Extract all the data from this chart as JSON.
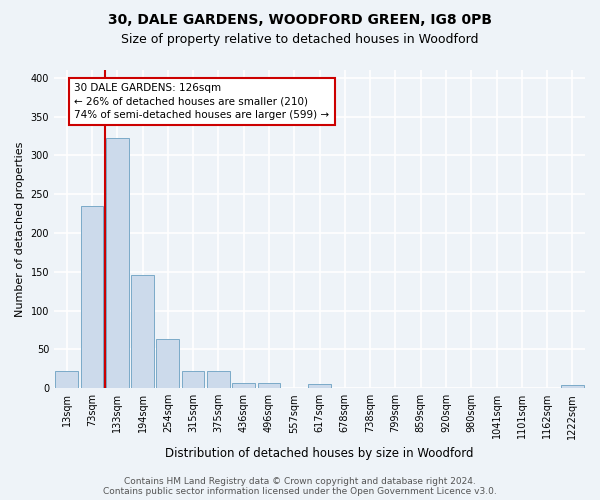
{
  "title1": "30, DALE GARDENS, WOODFORD GREEN, IG8 0PB",
  "title2": "Size of property relative to detached houses in Woodford",
  "xlabel": "Distribution of detached houses by size in Woodford",
  "ylabel": "Number of detached properties",
  "bar_labels": [
    "13sqm",
    "73sqm",
    "133sqm",
    "194sqm",
    "254sqm",
    "315sqm",
    "375sqm",
    "436sqm",
    "496sqm",
    "557sqm",
    "617sqm",
    "678sqm",
    "738sqm",
    "799sqm",
    "859sqm",
    "920sqm",
    "980sqm",
    "1041sqm",
    "1101sqm",
    "1162sqm",
    "1222sqm"
  ],
  "bar_values": [
    22,
    235,
    323,
    146,
    63,
    22,
    22,
    7,
    7,
    0,
    5,
    0,
    0,
    0,
    0,
    0,
    0,
    0,
    0,
    0,
    4
  ],
  "bar_color": "#ccdaeb",
  "bar_edge_color": "#7aaac8",
  "background_color": "#eef3f8",
  "grid_color": "#ffffff",
  "vline_color": "#cc0000",
  "vline_x_index": 2,
  "annotation_text": "30 DALE GARDENS: 126sqm\n← 26% of detached houses are smaller (210)\n74% of semi-detached houses are larger (599) →",
  "annotation_box_color": "#ffffff",
  "annotation_box_edge": "#cc0000",
  "footnote1": "Contains HM Land Registry data © Crown copyright and database right 2024.",
  "footnote2": "Contains public sector information licensed under the Open Government Licence v3.0.",
  "ylim": [
    0,
    410
  ],
  "yticks": [
    0,
    50,
    100,
    150,
    200,
    250,
    300,
    350,
    400
  ],
  "title1_fontsize": 10,
  "title2_fontsize": 9,
  "xlabel_fontsize": 8.5,
  "ylabel_fontsize": 8,
  "tick_fontsize": 7,
  "annotation_fontsize": 7.5,
  "footnote_fontsize": 6.5
}
